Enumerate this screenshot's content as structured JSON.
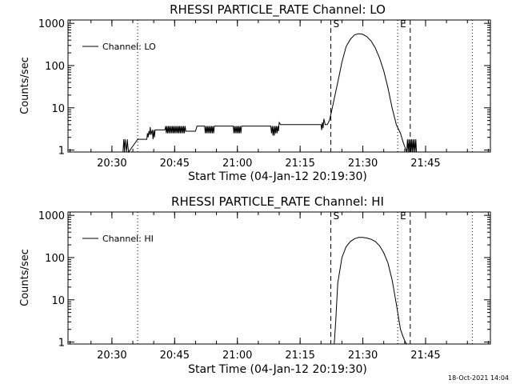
{
  "footer_timestamp": "18-Oct-2021 14:04",
  "chart_data": [
    {
      "type": "line",
      "title": "RHESSI PARTICLE_RATE Channel: LO",
      "xlabel": "Start Time (04-Jan-12 20:19:30)",
      "ylabel": "Counts/sec",
      "x_ticks": [
        "20:30",
        "20:45",
        "21:00",
        "21:15",
        "21:30",
        "21:45"
      ],
      "y_ticks": [
        "1",
        "10",
        "100",
        "1000"
      ],
      "xlim": [
        "20:19:30",
        "22:00:30"
      ],
      "ylim": [
        0.9,
        1200
      ],
      "y_scale": "log",
      "legend": {
        "label": "Channel: LO",
        "position": "top-left"
      },
      "markers": [
        {
          "time": "21:22:20",
          "label": "S",
          "style": "dashed"
        },
        {
          "time": "21:41:20",
          "label": "",
          "style": "dashed"
        },
        {
          "time": "20:36:10",
          "label": "",
          "style": "dotted"
        },
        {
          "time": "21:38:20",
          "label": "E",
          "style": "dotted"
        },
        {
          "time": "21:56:10",
          "label": "",
          "style": "dotted"
        }
      ],
      "series": [
        {
          "name": "Channel: LO",
          "x": [
            "20:32:40",
            "20:32:50",
            "20:33:00",
            "20:33:10",
            "20:33:30",
            "20:33:40",
            "20:33:50",
            "20:34:00",
            "20:36:10",
            "20:36:20",
            "20:38:20",
            "20:38:30",
            "20:38:40",
            "20:38:50",
            "20:39:00",
            "20:39:10",
            "20:39:20",
            "20:39:40",
            "20:39:50",
            "20:40:00",
            "20:40:10",
            "20:40:20",
            "20:40:40",
            "20:42:20",
            "20:42:40",
            "20:42:50",
            "20:43:00",
            "20:43:10",
            "20:43:20",
            "20:43:30",
            "20:43:40",
            "20:43:50",
            "20:44:00",
            "20:44:10",
            "20:44:20",
            "20:44:30",
            "20:44:40",
            "20:44:50",
            "20:45:00",
            "20:45:10",
            "20:45:20",
            "20:45:30",
            "20:45:40",
            "20:45:50",
            "20:46:00",
            "20:46:10",
            "20:46:20",
            "20:46:30",
            "20:46:40",
            "20:46:50",
            "20:47:00",
            "20:47:10",
            "20:47:20",
            "20:47:30",
            "20:47:40",
            "20:48:00",
            "20:50:00",
            "20:50:20",
            "20:51:00",
            "20:52:10",
            "20:52:20",
            "20:52:30",
            "20:52:40",
            "20:52:50",
            "20:53:00",
            "20:53:10",
            "20:53:20",
            "20:53:30",
            "20:53:40",
            "20:53:50",
            "20:54:00",
            "20:54:10",
            "20:54:20",
            "20:54:30",
            "20:54:40",
            "20:55:00",
            "20:57:00",
            "20:57:20",
            "20:58:00",
            "20:59:00",
            "20:59:10",
            "20:59:20",
            "20:59:30",
            "20:59:40",
            "20:59:50",
            "21:00:00",
            "21:00:10",
            "21:00:20",
            "21:00:30",
            "21:00:40",
            "21:00:50",
            "21:01:00",
            "21:02:00",
            "21:03:00",
            "21:04:00",
            "21:05:00",
            "21:06:00",
            "21:07:00",
            "21:08:00",
            "21:08:10",
            "21:08:20",
            "21:08:30",
            "21:08:40",
            "21:08:50",
            "21:09:00",
            "21:09:10",
            "21:09:20",
            "21:09:30",
            "21:09:40",
            "21:09:50",
            "21:10:00",
            "21:10:20",
            "21:11:00",
            "21:12:00",
            "21:13:00",
            "21:14:00",
            "21:15:00",
            "21:16:00",
            "21:17:00",
            "21:18:00",
            "21:19:00",
            "21:20:00",
            "21:20:10",
            "21:20:20",
            "21:20:30",
            "21:20:40",
            "21:21:00",
            "21:21:30",
            "21:22:00",
            "21:22:30",
            "21:23:00",
            "21:24:00",
            "21:25:00",
            "21:26:00",
            "21:27:00",
            "21:28:00",
            "21:29:00",
            "21:30:00",
            "21:31:00",
            "21:32:00",
            "21:33:00",
            "21:34:00",
            "21:35:00",
            "21:36:00",
            "21:37:00",
            "21:38:00",
            "21:39:00",
            "21:39:40",
            "21:40:10",
            "21:40:30",
            "21:40:40",
            "21:40:50",
            "21:41:00",
            "21:41:10",
            "21:41:20",
            "21:41:30",
            "21:41:40",
            "21:41:50",
            "21:42:00",
            "21:42:10",
            "21:42:20",
            "21:42:30",
            "21:42:40",
            "21:42:50"
          ],
          "values": [
            0.9,
            1.8,
            0.9,
            1.8,
            0.9,
            1.8,
            1.2,
            0.9,
            1.8,
            1.8,
            1.8,
            2.5,
            2.0,
            2.8,
            2.3,
            3.5,
            2.3,
            3.0,
            1.8,
            3.0,
            2.0,
            3.0,
            3.0,
            3.0,
            3.0,
            3.7,
            2.5,
            3.7,
            2.5,
            3.7,
            2.5,
            3.7,
            2.5,
            3.7,
            2.5,
            3.7,
            2.5,
            3.7,
            2.5,
            3.7,
            2.5,
            3.7,
            2.5,
            3.7,
            2.5,
            3.7,
            2.5,
            3.7,
            2.5,
            3.7,
            2.5,
            3.7,
            2.5,
            3.7,
            2.8,
            2.8,
            2.8,
            3.7,
            3.7,
            3.7,
            2.5,
            3.7,
            2.5,
            3.7,
            2.5,
            3.7,
            2.5,
            3.7,
            2.5,
            3.7,
            2.5,
            3.7,
            2.5,
            3.7,
            3.7,
            3.7,
            3.7,
            3.7,
            3.7,
            3.7,
            2.5,
            3.7,
            2.5,
            3.7,
            2.5,
            3.7,
            2.5,
            3.7,
            2.5,
            3.7,
            2.5,
            3.7,
            3.7,
            3.7,
            3.7,
            3.7,
            3.7,
            3.7,
            3.7,
            2.5,
            3.7,
            2.2,
            3.7,
            2.2,
            3.7,
            2.5,
            3.7,
            2.5,
            3.7,
            2.8,
            4.5,
            4.0,
            4.0,
            4.0,
            4.0,
            4.0,
            4.0,
            4.0,
            4.0,
            4.0,
            4.0,
            4.0,
            3.0,
            4.5,
            3.3,
            5.5,
            4.0,
            4.0,
            5.0,
            8.0,
            14,
            40,
            120,
            280,
            420,
            530,
            570,
            550,
            480,
            380,
            260,
            150,
            75,
            30,
            10,
            4,
            2.5,
            1.5,
            1.1,
            0.9,
            1.8,
            0.9,
            1.8,
            0.9,
            1.8,
            0.9,
            1.8,
            0.9,
            1.8,
            0.9,
            1.8,
            0.9,
            1.8,
            0.9
          ]
        }
      ]
    },
    {
      "type": "line",
      "title": "RHESSI PARTICLE_RATE Channel: HI",
      "xlabel": "Start Time (04-Jan-12 20:19:30)",
      "ylabel": "Counts/sec",
      "x_ticks": [
        "20:30",
        "20:45",
        "21:00",
        "21:15",
        "21:30",
        "21:45"
      ],
      "y_ticks": [
        "1",
        "10",
        "100",
        "1000"
      ],
      "xlim": [
        "20:19:30",
        "22:00:30"
      ],
      "ylim": [
        0.9,
        1200
      ],
      "y_scale": "log",
      "legend": {
        "label": "Channel: HI",
        "position": "top-left"
      },
      "markers": [
        {
          "time": "21:22:20",
          "label": "S",
          "style": "dashed"
        },
        {
          "time": "21:41:20",
          "label": "",
          "style": "dashed"
        },
        {
          "time": "20:36:10",
          "label": "",
          "style": "dotted"
        },
        {
          "time": "21:38:20",
          "label": "E",
          "style": "dotted"
        },
        {
          "time": "21:56:10",
          "label": "",
          "style": "dotted"
        }
      ],
      "series": [
        {
          "name": "Channel: HI",
          "x": [
            "21:23:10",
            "21:23:30",
            "21:24:00",
            "21:25:00",
            "21:26:00",
            "21:27:00",
            "21:28:00",
            "21:29:00",
            "21:30:00",
            "21:31:00",
            "21:32:00",
            "21:33:00",
            "21:34:00",
            "21:35:00",
            "21:36:00",
            "21:37:00",
            "21:38:00",
            "21:39:00",
            "21:39:40",
            "21:40:10",
            "21:40:30"
          ],
          "values": [
            0.9,
            3,
            25,
            100,
            180,
            240,
            280,
            300,
            300,
            290,
            270,
            240,
            190,
            130,
            75,
            30,
            8,
            2,
            1.3,
            1.0,
            0.9
          ]
        }
      ]
    }
  ]
}
